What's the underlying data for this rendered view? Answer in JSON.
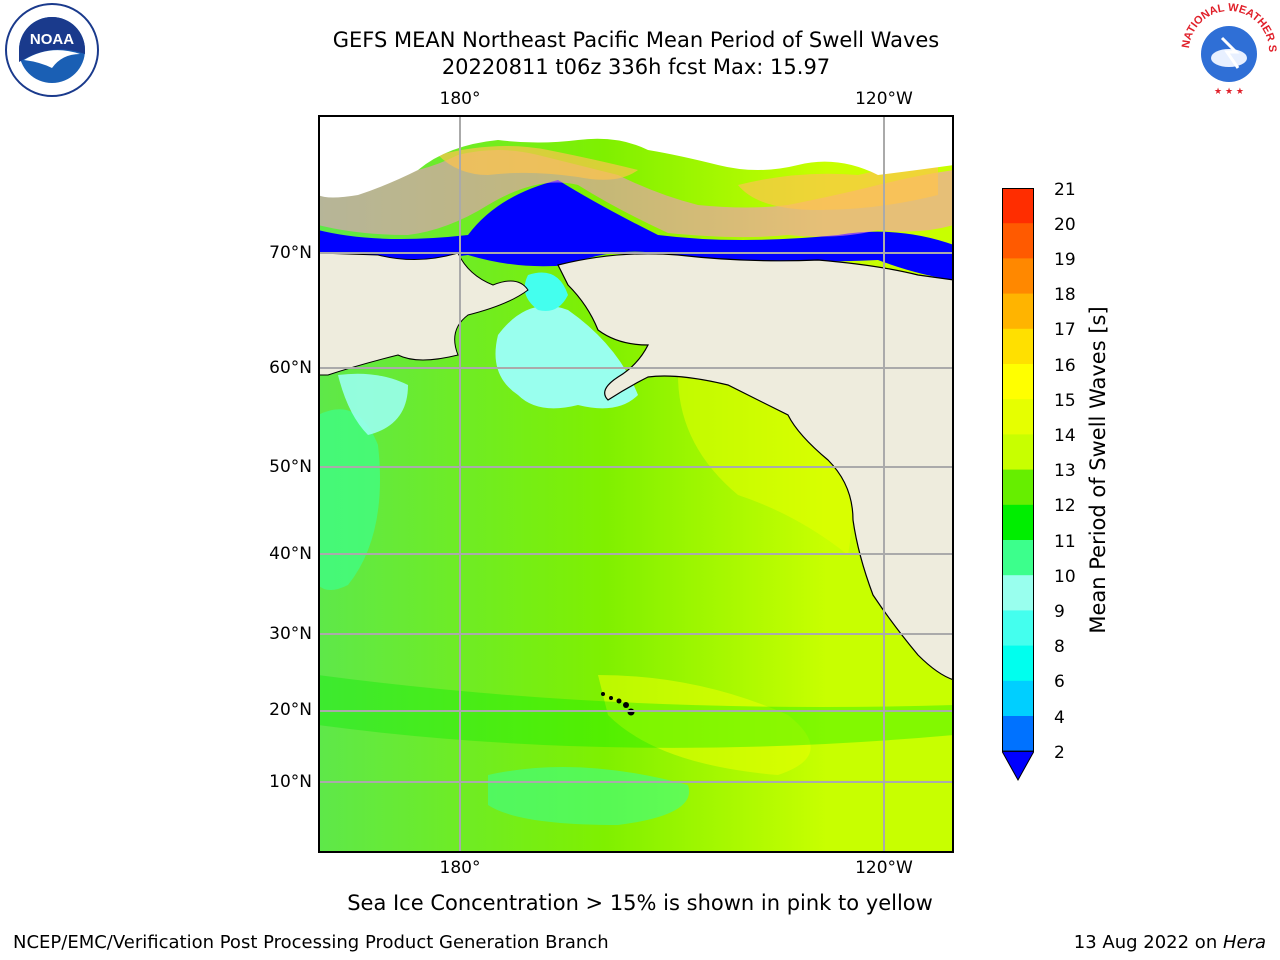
{
  "title": {
    "line1": "GEFS MEAN Northeast Pacific Mean Period of Swell Waves",
    "line2": "20220811 t06z 336h fcst   Max: 15.97"
  },
  "map": {
    "lon_labels_top": [
      "180°",
      "120°W"
    ],
    "lon_labels_bottom": [
      "180°",
      "120°W"
    ],
    "lat_labels": [
      "70°N",
      "60°N",
      "50°N",
      "40°N",
      "30°N",
      "20°N",
      "10°N"
    ],
    "colors": {
      "land": "#eeecdd",
      "open_ocean": "#ffffff",
      "coast": "#000000",
      "grid": "#aaaaaa"
    }
  },
  "colorbar": {
    "title": "Mean Period of Swell Waves [s]",
    "tick_labels": [
      "21",
      "20",
      "19",
      "18",
      "17",
      "16",
      "15",
      "14",
      "13",
      "12",
      "11",
      "10",
      "9",
      "8",
      "6",
      "4",
      "2"
    ],
    "bands": [
      {
        "from": "2",
        "color": "#0072ff"
      },
      {
        "from": "4",
        "color": "#00cfff"
      },
      {
        "from": "6",
        "color": "#00ffee"
      },
      {
        "from": "8",
        "color": "#44ffee"
      },
      {
        "from": "9",
        "color": "#99ffee"
      },
      {
        "from": "10",
        "color": "#3cff8c"
      },
      {
        "from": "11",
        "color": "#00ee00"
      },
      {
        "from": "12",
        "color": "#66ee00"
      },
      {
        "from": "13",
        "color": "#c8ff00"
      },
      {
        "from": "14",
        "color": "#e6ff00"
      },
      {
        "from": "15",
        "color": "#ffff00"
      },
      {
        "from": "16",
        "color": "#ffe000"
      },
      {
        "from": "17",
        "color": "#ffb400"
      },
      {
        "from": "18",
        "color": "#ff8800"
      },
      {
        "from": "19",
        "color": "#ff5a00"
      },
      {
        "from": "20",
        "color": "#ff2d00"
      }
    ],
    "extend_color": "#0000ff"
  },
  "note": "Sea Ice Concentration > 15% is shown in pink to yellow",
  "footer": {
    "left": "NCEP/EMC/Verification Post Processing Product Generation Branch",
    "right_date": "13 Aug 2022 on ",
    "right_host": "Hera"
  },
  "logos": {
    "noaa_text": "NOAA",
    "nws_text": "NATIONAL WEATHER SERVICE"
  }
}
